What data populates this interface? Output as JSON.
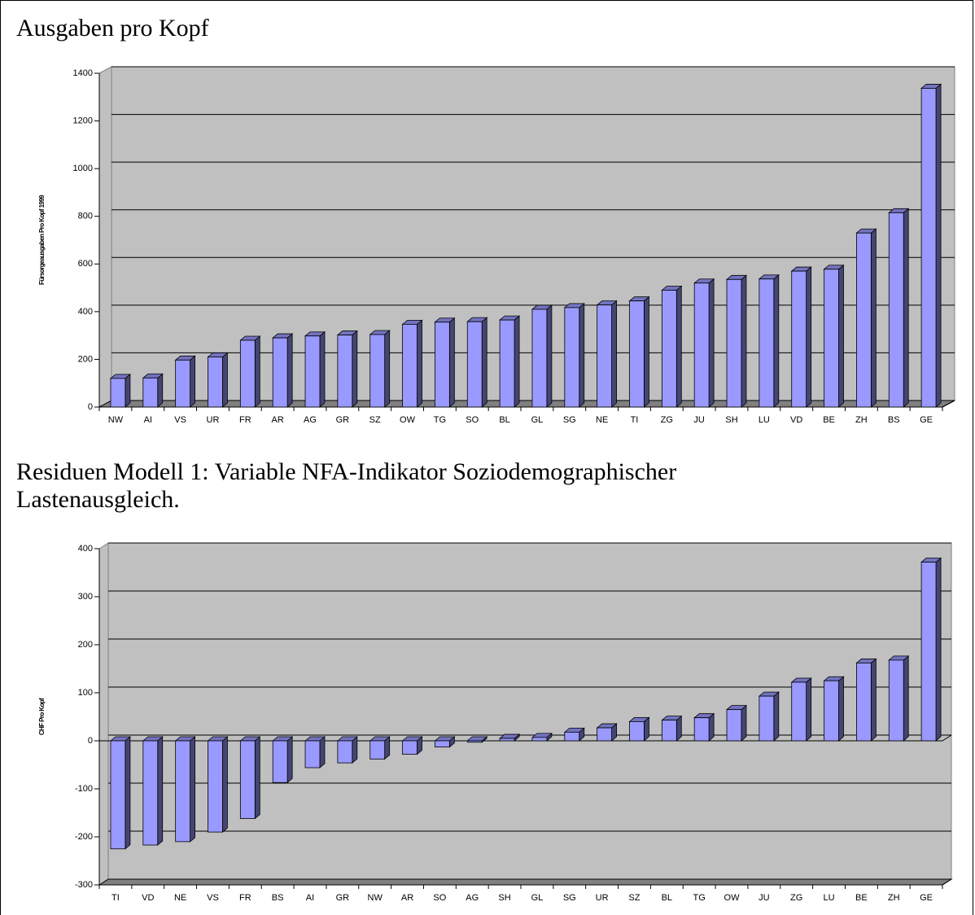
{
  "chart_data": [
    {
      "type": "bar3d",
      "title": "Ausgaben pro Kopf",
      "ylabel": "Fürsorgeausgaben Pro Kopf 1999",
      "categories": [
        "NW",
        "AI",
        "VS",
        "UR",
        "FR",
        "AR",
        "AG",
        "GR",
        "SZ",
        "OW",
        "TG",
        "SO",
        "BL",
        "GL",
        "SG",
        "NE",
        "TI",
        "ZG",
        "JU",
        "SH",
        "LU",
        "VD",
        "BE",
        "ZH",
        "BS",
        "GE"
      ],
      "values": [
        120,
        122,
        197,
        210,
        280,
        290,
        298,
        302,
        304,
        347,
        356,
        358,
        365,
        410,
        417,
        428,
        445,
        490,
        520,
        535,
        537,
        570,
        578,
        730,
        815,
        1337
      ],
      "color": "#9999ff",
      "ylim": [
        0,
        1400
      ],
      "yticks": [
        0,
        200,
        400,
        600,
        800,
        1000,
        1200,
        1400
      ],
      "grid": true
    },
    {
      "type": "bar3d",
      "title": "Residuen Modell 1: Variable NFA-Indikator Soziodemographischer Lastenausgleich.",
      "ylabel": "CHF Pro Kopf",
      "categories": [
        "TI",
        "VD",
        "NE",
        "VS",
        "FR",
        "BS",
        "AI",
        "GR",
        "NW",
        "AR",
        "SO",
        "AG",
        "SH",
        "GL",
        "SG",
        "UR",
        "SZ",
        "BL",
        "TG",
        "OW",
        "JU",
        "ZG",
        "LU",
        "BE",
        "ZH",
        "GE"
      ],
      "values": [
        -225,
        -217,
        -210,
        -190,
        -162,
        -87,
        -56,
        -46,
        -38,
        -28,
        -13,
        -3,
        5,
        7,
        18,
        27,
        40,
        43,
        48,
        65,
        93,
        122,
        125,
        162,
        168,
        372
      ],
      "color": "#9999ff",
      "ylim": [
        -300,
        400
      ],
      "yticks": [
        -300,
        -200,
        -100,
        0,
        100,
        200,
        300,
        400
      ],
      "grid": true
    }
  ]
}
